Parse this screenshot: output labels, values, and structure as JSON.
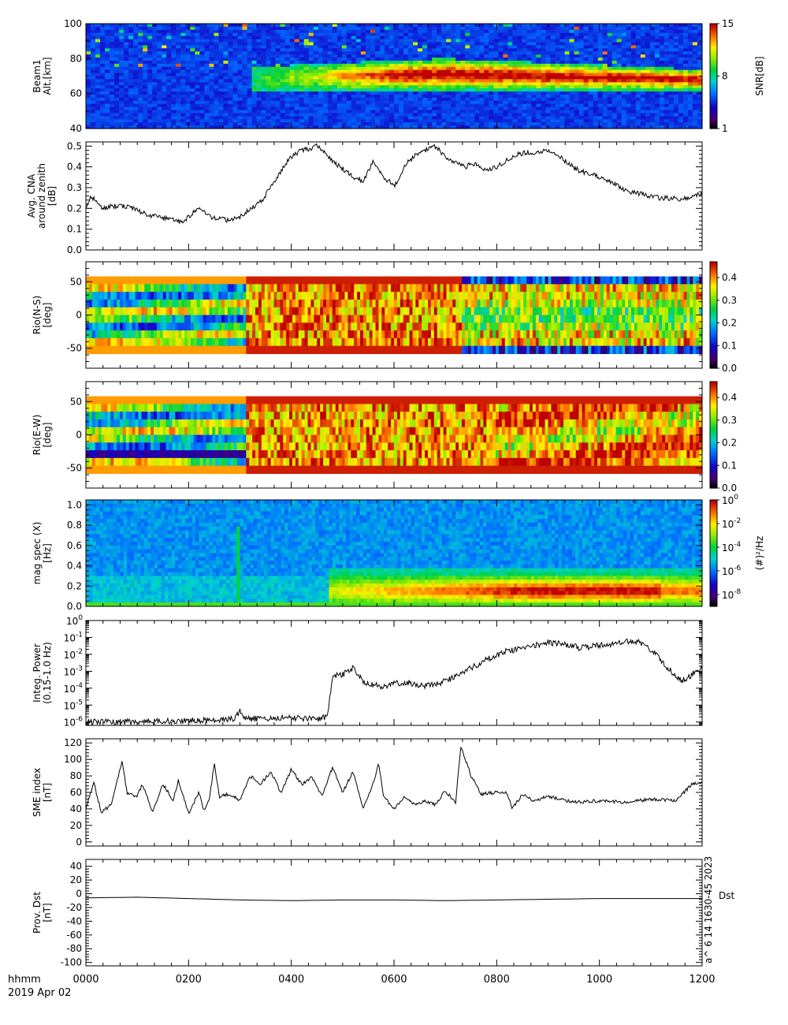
{
  "footer": {
    "time_label": "hhmm",
    "date_label": "2019 Apr 02",
    "x_ticks": [
      "0000",
      "0200",
      "0400",
      "0600",
      "0800",
      "1000",
      "1200"
    ],
    "stamp": "a^ 6 14 1630-45 2023"
  },
  "chart_data": [
    {
      "type": "heatmap",
      "ylabel": [
        "Beam1",
        "Alt.[km]"
      ],
      "yticks": [
        40,
        60,
        80,
        100
      ],
      "ylim": [
        40,
        100
      ],
      "xlim": [
        0,
        12
      ],
      "colorbar": {
        "label": "SNR[dB]",
        "ticks": [
          "1",
          "8",
          "15"
        ],
        "range": [
          1,
          15
        ]
      },
      "features": [
        {
          "desc_from": 3.2,
          "desc_to": 12.0,
          "alt_from": 62,
          "alt_to": 80,
          "peak_snr": 15
        }
      ]
    },
    {
      "type": "line",
      "ylabel": [
        "Avg. CNA",
        "around zenith",
        "[dB]"
      ],
      "yticks": [
        "0.0",
        "0.1",
        "0.2",
        "0.3",
        "0.4",
        "0.5"
      ],
      "ylim": [
        0,
        0.52
      ],
      "xlim": [
        0,
        12
      ],
      "series": [
        {
          "x": [
            0.0,
            0.1,
            0.3,
            0.5,
            0.8,
            1.0,
            1.2,
            1.4,
            1.6,
            1.8,
            1.9,
            2.0,
            2.2,
            2.4,
            2.6,
            2.8,
            2.9,
            3.0,
            3.1,
            3.2,
            3.4,
            3.6,
            3.8,
            4.0,
            4.2,
            4.4,
            4.5,
            4.6,
            4.7,
            4.8,
            5.0,
            5.2,
            5.4,
            5.6,
            5.8,
            6.0,
            6.1,
            6.2,
            6.4,
            6.6,
            6.8,
            7.0,
            7.2,
            7.3,
            7.4,
            7.5,
            7.6,
            7.8,
            8.0,
            8.2,
            8.4,
            8.6,
            8.8,
            9.0,
            9.2,
            9.4,
            9.6,
            9.8,
            10.0,
            10.2,
            10.4,
            10.6,
            10.8,
            11.0,
            11.2,
            11.4,
            11.6,
            11.8,
            12.0
          ],
          "values": [
            0.2,
            0.26,
            0.2,
            0.21,
            0.21,
            0.19,
            0.17,
            0.16,
            0.15,
            0.14,
            0.14,
            0.16,
            0.21,
            0.16,
            0.15,
            0.14,
            0.15,
            0.16,
            0.18,
            0.2,
            0.23,
            0.3,
            0.38,
            0.45,
            0.48,
            0.49,
            0.5,
            0.48,
            0.46,
            0.43,
            0.39,
            0.35,
            0.33,
            0.43,
            0.35,
            0.31,
            0.34,
            0.41,
            0.45,
            0.48,
            0.5,
            0.45,
            0.42,
            0.41,
            0.4,
            0.42,
            0.41,
            0.38,
            0.4,
            0.43,
            0.46,
            0.47,
            0.47,
            0.48,
            0.45,
            0.42,
            0.38,
            0.37,
            0.35,
            0.33,
            0.3,
            0.28,
            0.27,
            0.26,
            0.25,
            0.25,
            0.24,
            0.26,
            0.27
          ]
        }
      ]
    },
    {
      "type": "heatmap",
      "ylabel": [
        "Rio(N-S)",
        "[deg]"
      ],
      "yticks": [
        -50,
        0,
        50
      ],
      "ylim": [
        -80,
        80
      ],
      "xlim": [
        0,
        12
      ],
      "colorbar": {
        "label": "",
        "ticks": [
          "0.0",
          "0.1",
          "0.2",
          "0.3",
          "0.4"
        ],
        "range": [
          0,
          0.47
        ]
      },
      "features": [
        {
          "t_from": 0,
          "t_to": 3.1,
          "level": "low (0.15-0.3)"
        },
        {
          "t_from": 3.1,
          "t_to": 7.3,
          "level": "high (0.4+)"
        },
        {
          "t_from": 7.3,
          "t_to": 12,
          "level": "mixed, edges no data"
        }
      ]
    },
    {
      "type": "heatmap",
      "ylabel": [
        "Rio(E-W)",
        "[deg]"
      ],
      "yticks": [
        -50,
        0,
        50
      ],
      "ylim": [
        -80,
        80
      ],
      "xlim": [
        0,
        12
      ],
      "colorbar": {
        "label": "",
        "ticks": [
          "0.0",
          "0.1",
          "0.2",
          "0.3",
          "0.4"
        ],
        "range": [
          0,
          0.47
        ]
      },
      "features": [
        {
          "t_from": 0,
          "t_to": 3.1,
          "level": "low (0.1-0.3)"
        },
        {
          "t_from": 3.1,
          "t_to": 12,
          "level": "high (0.3-0.45)"
        }
      ]
    },
    {
      "type": "heatmap",
      "ylabel": [
        "mag spec (X)",
        "[Hz]"
      ],
      "yticks": [
        "0.0",
        "0.2",
        "0.4",
        "0.6",
        "0.8",
        "1.0"
      ],
      "ylim": [
        0,
        1.05
      ],
      "xlim": [
        0,
        12
      ],
      "colorbar": {
        "label": "(#)^2/Hz",
        "ticks": [
          "10^0",
          "10^-2",
          "10^-4",
          "10^-6",
          "10^-8"
        ],
        "range_log": [
          -9,
          0
        ]
      },
      "features": [
        {
          "t_from": 4.7,
          "t_to": 12,
          "freq_from": 0.05,
          "freq_to": 0.35,
          "peak": "10^-2"
        }
      ]
    },
    {
      "type": "line",
      "ylabel": [
        "Integ. Power",
        "(0.15-1.0 Hz)"
      ],
      "yscale": "log",
      "yticks": [
        "10^-6",
        "10^-5",
        "10^-4",
        "10^-3",
        "10^-2",
        "10^-1",
        "10^0"
      ],
      "ylim_log": [
        -6.2,
        0
      ],
      "xlim": [
        0,
        12
      ],
      "series": [
        {
          "x": [
            0.0,
            0.5,
            1.0,
            1.5,
            2.0,
            2.5,
            2.9,
            3.0,
            3.1,
            3.5,
            4.0,
            4.5,
            4.7,
            4.8,
            5.0,
            5.2,
            5.4,
            5.6,
            5.8,
            6.0,
            6.3,
            6.6,
            7.0,
            7.4,
            7.8,
            8.2,
            8.6,
            9.0,
            9.3,
            9.6,
            10.0,
            10.4,
            10.7,
            11.0,
            11.3,
            11.6,
            11.8,
            12.0
          ],
          "values": [
            -6.0,
            -6.0,
            -6.0,
            -5.95,
            -5.9,
            -5.9,
            -5.8,
            -5.3,
            -5.8,
            -5.8,
            -5.75,
            -5.8,
            -5.7,
            -3.3,
            -3.2,
            -2.8,
            -3.6,
            -3.8,
            -3.9,
            -3.7,
            -3.7,
            -3.9,
            -3.6,
            -3.0,
            -2.3,
            -1.8,
            -1.6,
            -1.3,
            -1.4,
            -1.6,
            -1.5,
            -1.3,
            -1.2,
            -1.7,
            -2.7,
            -3.6,
            -3.2,
            -2.8
          ]
        }
      ]
    },
    {
      "type": "line",
      "ylabel": [
        "SME index",
        "[nT]"
      ],
      "yticks": [
        0,
        20,
        40,
        60,
        80,
        100,
        120
      ],
      "ylim": [
        -5,
        125
      ],
      "xlim": [
        0,
        12
      ],
      "series": [
        {
          "x": [
            0.0,
            0.15,
            0.3,
            0.5,
            0.7,
            0.8,
            1.0,
            1.1,
            1.3,
            1.5,
            1.7,
            1.8,
            2.0,
            2.2,
            2.3,
            2.4,
            2.5,
            2.6,
            2.8,
            3.0,
            3.2,
            3.4,
            3.6,
            3.8,
            4.0,
            4.2,
            4.4,
            4.6,
            4.8,
            5.0,
            5.2,
            5.4,
            5.6,
            5.7,
            5.8,
            6.0,
            6.2,
            6.4,
            6.6,
            6.8,
            7.0,
            7.2,
            7.3,
            7.5,
            7.7,
            8.0,
            8.2,
            8.3,
            8.5,
            8.7,
            9.0,
            9.5,
            10.0,
            10.5,
            11.0,
            11.5,
            11.8,
            12.0
          ],
          "values": [
            40,
            72,
            36,
            45,
            98,
            60,
            55,
            70,
            36,
            70,
            50,
            75,
            35,
            60,
            38,
            50,
            95,
            55,
            58,
            50,
            80,
            70,
            85,
            60,
            88,
            70,
            78,
            55,
            90,
            60,
            85,
            40,
            72,
            95,
            55,
            40,
            55,
            45,
            50,
            45,
            62,
            48,
            117,
            80,
            58,
            60,
            60,
            40,
            58,
            50,
            55,
            48,
            50,
            48,
            52,
            50,
            70,
            72
          ]
        }
      ]
    },
    {
      "type": "line",
      "ylabel": [
        "Prov. Dst",
        "[nT]"
      ],
      "yticks": [
        -100,
        -80,
        -60,
        -40,
        -20,
        0,
        20,
        40
      ],
      "ylim": [
        -105,
        50
      ],
      "xlim": [
        0,
        12
      ],
      "legend": "Dst",
      "series": [
        {
          "name": "Dst",
          "x": [
            0,
            1,
            2,
            3,
            4,
            5,
            6,
            7,
            8,
            9,
            10,
            11,
            12
          ],
          "values": [
            -6,
            -5,
            -7,
            -9,
            -10,
            -9,
            -9,
            -10,
            -9,
            -8,
            -7,
            -7,
            -7
          ]
        }
      ]
    }
  ]
}
